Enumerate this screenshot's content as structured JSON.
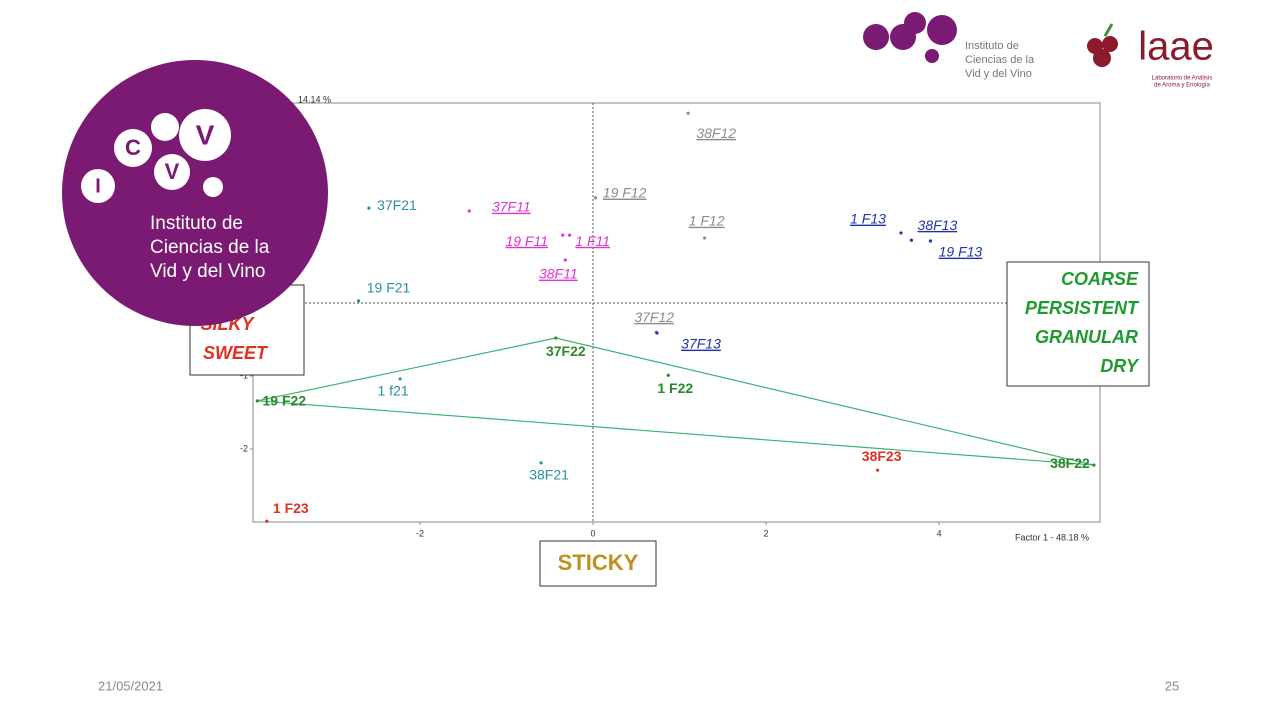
{
  "header": {
    "institute_name": [
      "Instituto de",
      "Ciencias de la",
      "Vid y del Vino"
    ],
    "lab_name": "laae",
    "lab_subtitle": [
      "Laboratorio de Análisis",
      "de Aroma y Enología"
    ]
  },
  "badge": {
    "lines": [
      "Instituto de",
      "Ciencias de la",
      "Vid y del Vino"
    ]
  },
  "chart_data": {
    "type": "scatter",
    "x_label": "Factor 1  -  48.18 %",
    "y_label": "14.14 %",
    "xlim": [
      -3.93,
      5.86
    ],
    "ylim": [
      -3.0,
      2.74
    ],
    "xticks": [
      -2,
      0,
      2,
      4
    ],
    "yticks": [
      -2,
      -1
    ],
    "points": [
      {
        "label": "38F12",
        "x": 1.1,
        "y": 2.6,
        "color": "#8c8c8c",
        "underline": true
      },
      {
        "label": "19 F12",
        "x": 0.03,
        "y": 1.44,
        "color": "#8c8c8c",
        "underline": true
      },
      {
        "label": "1 F12",
        "x": 1.29,
        "y": 0.89,
        "color": "#8c8c8c",
        "underline": true
      },
      {
        "label": "1 F13",
        "x": 3.56,
        "y": 0.96,
        "color": "#2233aa",
        "underline": true
      },
      {
        "label": "38F13",
        "x": 3.68,
        "y": 0.86,
        "color": "#2233aa",
        "underline": true
      },
      {
        "label": "19 F13",
        "x": 3.9,
        "y": 0.85,
        "color": "#2233aa",
        "underline": true
      },
      {
        "label": "37F11",
        "x": -1.43,
        "y": 1.26,
        "color": "#e030d8",
        "underline": true
      },
      {
        "label": "19 F11",
        "x": -0.35,
        "y": 0.93,
        "color": "#e030d8",
        "underline": true
      },
      {
        "label": "1 F11",
        "x": -0.27,
        "y": 0.93,
        "color": "#e030d8",
        "underline": true
      },
      {
        "label": "38F11",
        "x": -0.32,
        "y": 0.59,
        "color": "#e030d8",
        "underline": true
      },
      {
        "label": "37F21",
        "x": -2.59,
        "y": 1.3,
        "color": "#2a8fa0",
        "underline": false
      },
      {
        "label": "19 F21",
        "x": -2.71,
        "y": 0.03,
        "color": "#2a8fa0",
        "underline": false
      },
      {
        "label": "1 f21",
        "x": -2.23,
        "y": -1.04,
        "color": "#2a8fa0",
        "underline": false
      },
      {
        "label": "38F21",
        "x": -0.6,
        "y": -2.19,
        "color": "#2a8fa0",
        "underline": false
      },
      {
        "label": "37F12",
        "x": 0.73,
        "y": -0.4,
        "color": "#8c8c8c",
        "underline": true
      },
      {
        "label": "37F13",
        "x": 0.74,
        "y": -0.41,
        "color": "#2233aa",
        "underline": true
      },
      {
        "label": "37F22",
        "x": -0.43,
        "y": -0.48,
        "color": "#2a8a2a",
        "underline": false
      },
      {
        "label": "1 F22",
        "x": 0.87,
        "y": -0.99,
        "color": "#2a8a2a",
        "underline": false
      },
      {
        "label": "19 F22",
        "x": -3.88,
        "y": -1.34,
        "color": "#2a8a2a",
        "underline": false
      },
      {
        "label": "38F22",
        "x": 5.79,
        "y": -2.22,
        "color": "#2a8a2a",
        "underline": false
      },
      {
        "label": "38F23",
        "x": 3.29,
        "y": -2.29,
        "color": "#e03020",
        "underline": false
      },
      {
        "label": "1 F23",
        "x": -3.77,
        "y": -2.99,
        "color": "#e03020",
        "underline": false
      }
    ],
    "outline_color": "#3cb371"
  },
  "boxes": {
    "left": [
      "SILKY",
      "SWEET"
    ],
    "right": [
      "COARSE",
      "PERSISTENT",
      "GRANULAR",
      "DRY"
    ],
    "bottom": "STICKY"
  },
  "footer": {
    "date": "21/05/2021",
    "page": "25"
  }
}
